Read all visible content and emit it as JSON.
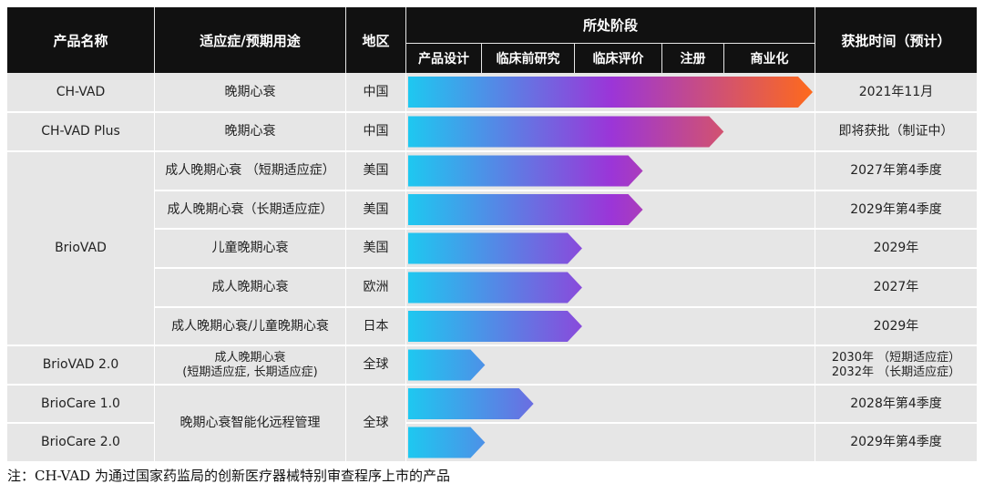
{
  "table": {
    "headers": {
      "product": "产品名称",
      "indication": "适应症/预期用途",
      "region": "地区",
      "stage": "所处阶段",
      "approval": "获批时间（预计）"
    },
    "stages": [
      "产品设计",
      "临床前研究",
      "临床评价",
      "注册",
      "商业化"
    ],
    "rows": [
      {
        "product": "CH-VAD",
        "indication": "晚期心衰",
        "region": "中国",
        "approval": "2021年11月",
        "progress": 1.0
      },
      {
        "product": "CH-VAD Plus",
        "indication": "晚期心衰",
        "region": "中国",
        "approval": "即将获批（制证中）",
        "progress": 0.78
      },
      {
        "product": "BrioVAD",
        "indication": "成人晚期心衰 （短期适应症）",
        "region": "美国",
        "approval": "2027年第4季度",
        "progress": 0.58
      },
      {
        "product": "",
        "indication": "成人晚期心衰（长期适应症）",
        "region": "美国",
        "approval": "2029年第4季度",
        "progress": 0.58
      },
      {
        "product": "",
        "indication": "儿童晚期心衰",
        "region": "美国",
        "approval": "2029年",
        "progress": 0.43
      },
      {
        "product": "",
        "indication": "成人晚期心衰",
        "region": "欧洲",
        "approval": "2027年",
        "progress": 0.43
      },
      {
        "product": "",
        "indication": "成人晚期心衰/儿童晚期心衰",
        "region": "日本",
        "approval": "2029年",
        "progress": 0.43
      },
      {
        "product": "BrioVAD 2.0",
        "indication": "成人晚期心衰\n(短期适应症, 长期适应症)",
        "region": "全球",
        "approval": "2030年 （短期适应症）\n2032年 （长期适应症）",
        "progress": 0.19
      },
      {
        "product": "BrioCare 1.0",
        "indication": "晚期心衰智能化远程管理",
        "region": "全球",
        "approval": "2028年第4季度",
        "progress": 0.31
      },
      {
        "product": "BrioCare 2.0",
        "indication": "",
        "region": "",
        "approval": "2029年第4季度",
        "progress": 0.19
      }
    ]
  },
  "colors": {
    "header_bg": "#111111",
    "row_bg": "#e6e6e6",
    "bar_start": "#1ec8f0",
    "bar_mid": "#9b35d8",
    "bar_end": "#ff6a1a"
  },
  "note": "注：CH-VAD 为通过国家药监局的创新医疗器械特别审查程序上市的产品"
}
